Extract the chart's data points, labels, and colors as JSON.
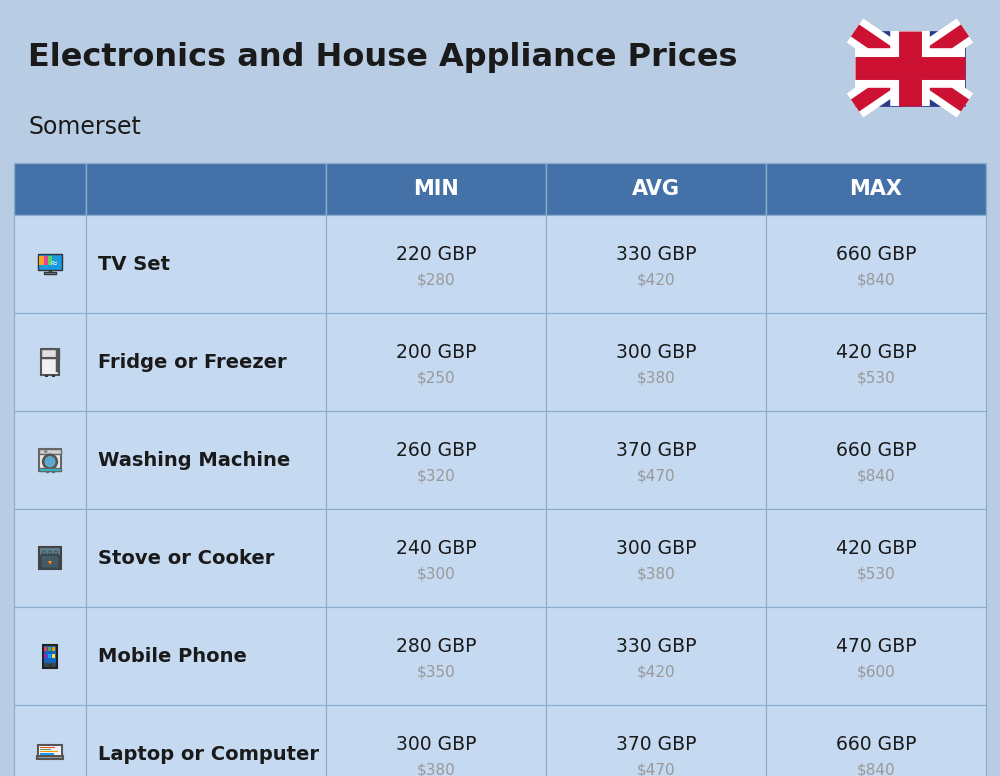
{
  "title": "Electronics and House Appliance Prices",
  "subtitle": "Somerset",
  "background_color": "#b8cce4",
  "header_color": "#4472a8",
  "header_text_color": "#ffffff",
  "row_bg_color": "#c5d9f1",
  "border_color": "#8aabcc",
  "text_color": "#1a1a1a",
  "usd_color": "#999999",
  "columns": [
    "MIN",
    "AVG",
    "MAX"
  ],
  "rows": [
    {
      "name": "TV Set",
      "min_gbp": "220 GBP",
      "min_usd": "$280",
      "avg_gbp": "330 GBP",
      "avg_usd": "$420",
      "max_gbp": "660 GBP",
      "max_usd": "$840"
    },
    {
      "name": "Fridge or Freezer",
      "min_gbp": "200 GBP",
      "min_usd": "$250",
      "avg_gbp": "300 GBP",
      "avg_usd": "$380",
      "max_gbp": "420 GBP",
      "max_usd": "$530"
    },
    {
      "name": "Washing Machine",
      "min_gbp": "260 GBP",
      "min_usd": "$320",
      "avg_gbp": "370 GBP",
      "avg_usd": "$470",
      "max_gbp": "660 GBP",
      "max_usd": "$840"
    },
    {
      "name": "Stove or Cooker",
      "min_gbp": "240 GBP",
      "min_usd": "$300",
      "avg_gbp": "300 GBP",
      "avg_usd": "$380",
      "max_gbp": "420 GBP",
      "max_usd": "$530"
    },
    {
      "name": "Mobile Phone",
      "min_gbp": "280 GBP",
      "min_usd": "$350",
      "avg_gbp": "330 GBP",
      "avg_usd": "$420",
      "max_gbp": "470 GBP",
      "max_usd": "$600"
    },
    {
      "name": "Laptop or Computer",
      "min_gbp": "300 GBP",
      "min_usd": "$380",
      "avg_gbp": "370 GBP",
      "avg_usd": "$470",
      "max_gbp": "660 GBP",
      "max_usd": "$840"
    }
  ],
  "figsize": [
    10.0,
    7.76
  ],
  "dpi": 100
}
